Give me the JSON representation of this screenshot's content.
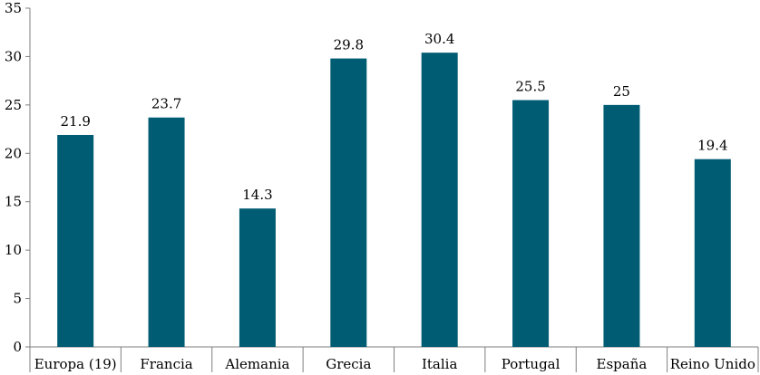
{
  "chart_data": {
    "type": "bar",
    "title": "",
    "xlabel": "",
    "ylabel": "",
    "categories": [
      "Europa (19)",
      "Francia",
      "Alemania",
      "Grecia",
      "Italia",
      "Portugal",
      "España",
      "Reino Unido"
    ],
    "values": [
      21.9,
      23.7,
      14.3,
      29.8,
      30.4,
      25.5,
      25,
      19.4
    ],
    "data_labels": [
      "21.9",
      "23.7",
      "14.3",
      "29.8",
      "30.4",
      "25.5",
      "25",
      "19.4"
    ],
    "ylim": [
      0,
      35
    ],
    "yticks": [
      0,
      5,
      10,
      15,
      20,
      25,
      30,
      35
    ],
    "ytick_labels": [
      "0",
      "5",
      "10",
      "15",
      "20",
      "25",
      "30",
      "35"
    ],
    "grid": false,
    "legend": "none",
    "bar_color": "#005c73"
  }
}
